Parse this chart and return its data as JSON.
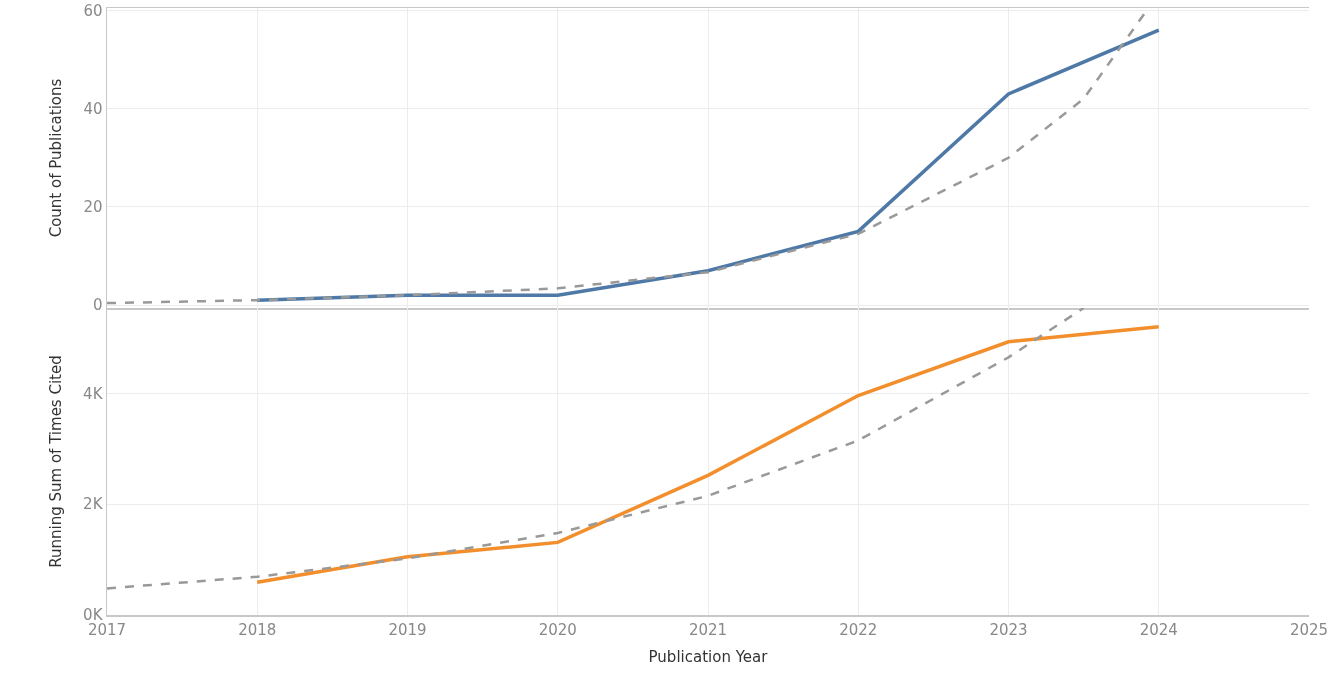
{
  "chart_data": [
    {
      "type": "line",
      "ylabel": "Count of Publications",
      "x": [
        2018,
        2019,
        2020,
        2021,
        2022,
        2023,
        2024
      ],
      "xlim": [
        2017,
        2025
      ],
      "xticks": [
        2017,
        2018,
        2019,
        2020,
        2021,
        2022,
        2023,
        2024,
        2025
      ],
      "ylim": [
        -0.6,
        60.5
      ],
      "yticks": [
        0,
        20,
        40,
        60
      ],
      "grid": true,
      "tick_labels": "y",
      "series": [
        {
          "color": "#4e79a7",
          "values": [
            1,
            2,
            2,
            7,
            15,
            43,
            56
          ]
        },
        {
          "color": "#999999",
          "line_style": "dashed",
          "x": [
            2017,
            2018,
            2019,
            2020,
            2021,
            2022,
            2023,
            2023.5,
            2023.92
          ],
          "values": [
            0.4,
            1,
            2,
            3.4,
            6.7,
            14.5,
            30,
            42,
            60
          ]
        }
      ]
    },
    {
      "type": "line",
      "ylabel": "Running Sum of Times Cited",
      "xlabel": "Publication Year",
      "x": [
        2018,
        2019,
        2020,
        2021,
        2022,
        2023,
        2024
      ],
      "xlim": [
        2017,
        2025
      ],
      "xticks": [
        2017,
        2018,
        2019,
        2020,
        2021,
        2022,
        2023,
        2024,
        2025
      ],
      "ylim": [
        0,
        5540
      ],
      "yticks": [
        {
          "value": 0,
          "label": "0K"
        },
        {
          "value": 2000,
          "label": "2K"
        },
        {
          "value": 4000,
          "label": "4K"
        }
      ],
      "grid": true,
      "series": [
        {
          "color": "#f28e2b",
          "values": [
            590,
            1050,
            1310,
            2520,
            3960,
            4930,
            5200
          ]
        },
        {
          "color": "#999999",
          "line_style": "dashed",
          "x": [
            2017,
            2018,
            2019,
            2020,
            2021,
            2022,
            2023,
            2023.5
          ],
          "values": [
            480,
            690,
            1020,
            1480,
            2150,
            3150,
            4650,
            5540
          ]
        }
      ]
    }
  ]
}
